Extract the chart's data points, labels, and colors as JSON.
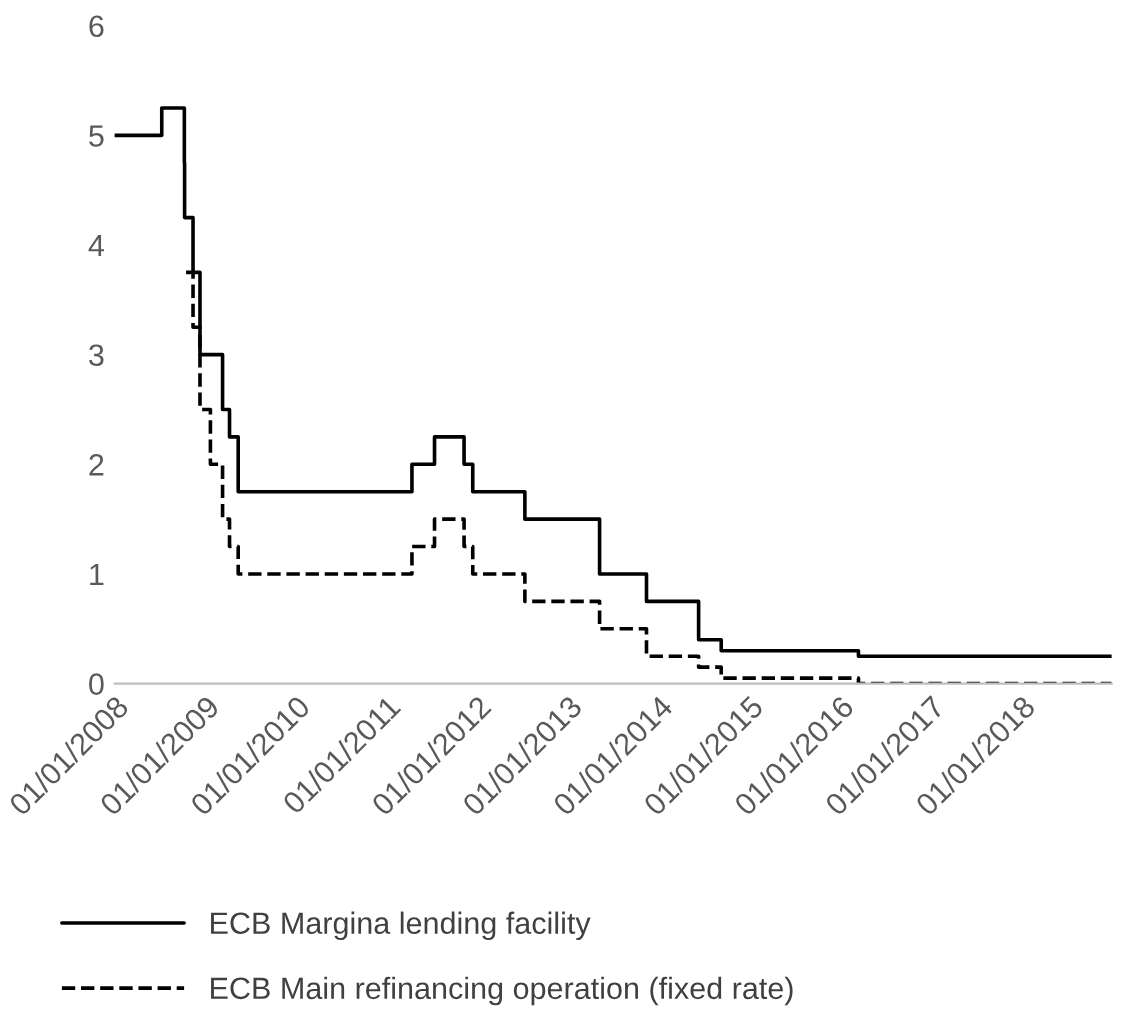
{
  "chart_data": {
    "type": "step",
    "series": [
      {
        "name": "ECB Margina lending facility",
        "color": "#000000",
        "line_style": "solid",
        "x": [
          "2008-01-01",
          "2008-07-09",
          "2008-10-08",
          "2008-10-09",
          "2008-11-12",
          "2008-12-10",
          "2009-03-11",
          "2009-04-08",
          "2009-05-13",
          "2011-04-13",
          "2011-07-13",
          "2011-11-09",
          "2011-12-14",
          "2012-07-11",
          "2013-05-08",
          "2013-11-13",
          "2014-06-11",
          "2014-09-10",
          "2016-03-16",
          "2018-12-31"
        ],
        "values": [
          5.0,
          5.25,
          4.75,
          4.25,
          3.75,
          3.0,
          2.5,
          2.25,
          1.75,
          2.0,
          2.25,
          2.0,
          1.75,
          1.5,
          1.0,
          0.75,
          0.4,
          0.3,
          0.25,
          0.25
        ]
      },
      {
        "name": "ECB Main refinancing operation (fixed rate)",
        "color": "#000000",
        "line_style": "dashed",
        "x": [
          "2008-10-15",
          "2008-11-12",
          "2008-12-10",
          "2009-01-21",
          "2009-03-11",
          "2009-04-08",
          "2009-05-13",
          "2011-04-13",
          "2011-07-13",
          "2011-11-09",
          "2011-12-14",
          "2012-07-11",
          "2013-05-08",
          "2013-11-13",
          "2014-06-11",
          "2014-09-10",
          "2016-03-16",
          "2018-12-31"
        ],
        "values": [
          3.75,
          3.25,
          2.5,
          2.0,
          1.5,
          1.25,
          1.0,
          1.25,
          1.5,
          1.25,
          1.0,
          0.75,
          0.5,
          0.25,
          0.15,
          0.05,
          0.0,
          0.0
        ]
      }
    ],
    "xlim": [
      "2008-01-01",
      "2018-12-31"
    ],
    "xticks": [
      {
        "value": "2008-01-01",
        "label": "01/01/2008"
      },
      {
        "value": "2009-01-01",
        "label": "01/01/2009"
      },
      {
        "value": "2010-01-01",
        "label": "01/01/2010"
      },
      {
        "value": "2011-01-01",
        "label": "01/01/2011"
      },
      {
        "value": "2012-01-01",
        "label": "01/01/2012"
      },
      {
        "value": "2013-01-01",
        "label": "01/01/2013"
      },
      {
        "value": "2014-01-01",
        "label": "01/01/2014"
      },
      {
        "value": "2015-01-01",
        "label": "01/01/2015"
      },
      {
        "value": "2016-01-01",
        "label": "01/01/2016"
      },
      {
        "value": "2017-01-01",
        "label": "01/01/2017"
      },
      {
        "value": "2018-01-01",
        "label": "01/01/2018"
      }
    ],
    "ylim": [
      0,
      6
    ],
    "yticks": [
      0,
      1,
      2,
      3,
      4,
      5,
      6
    ],
    "grid": false,
    "legend": "bottom"
  }
}
